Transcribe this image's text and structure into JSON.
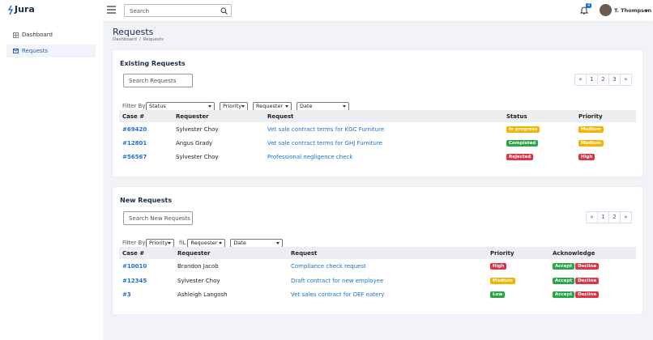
{
  "brand": "Jura",
  "header": {
    "search_placeholder": "Search",
    "notification_count": "4",
    "user": "T. Thompson"
  },
  "sidebar": [
    {
      "label": "Dashboard"
    },
    {
      "label": "Requests"
    }
  ],
  "page": {
    "title": "Requests",
    "breadcrumb": [
      "Dashboard",
      "/",
      "Requests"
    ]
  },
  "existing_requests": {
    "title": "Existing Requests",
    "search_placeholder": "Search Requests",
    "pagination": [
      "«",
      "1",
      "2",
      "3",
      "»"
    ],
    "filter_label": "Filter By:",
    "filters": [
      {
        "select": "Status"
      },
      {
        "select": "Priority"
      },
      {
        "select": "Requester"
      },
      {
        "select": "Date"
      }
    ],
    "columns": [
      "Case #",
      "Requester",
      "Request",
      "Status",
      "Priority"
    ],
    "rows": [
      {
        "case": "#69420",
        "requester": "Sylvester Choy",
        "request": "Vet sale contract terms for KGC Furniture",
        "badges": [
          {
            "text": "In progress",
            "color": "#f5b400"
          },
          {
            "text": "Medium",
            "color": "#f5b400"
          }
        ]
      },
      {
        "case": "#12801",
        "requester": "Angus Grady",
        "request": "Vet sale contract terms for GHJ Furniture",
        "badges": [
          {
            "text": "Completed",
            "color": "#28a745"
          },
          {
            "text": "Medium",
            "color": "#f5b400"
          }
        ]
      },
      {
        "case": "#56567",
        "requester": "Sylvester Choy",
        "request": "Professional negligence check",
        "badges": [
          {
            "text": "Rejected",
            "color": "#dc3545"
          },
          {
            "text": "High",
            "color": "#dc3545"
          }
        ]
      }
    ]
  },
  "new_requests": {
    "title": "New Requests",
    "search_placeholder": "Search New Requests",
    "pagination": [
      "«",
      "1",
      "2",
      "»"
    ],
    "filter_label": "Filter By:",
    "filters": [
      {
        "select": "Priority"
      },
      {
        "label": "fiL",
        "select": "Requester"
      },
      {
        "select": "Date"
      }
    ],
    "columns": [
      "Case #",
      "Requester",
      "Request",
      "Priority",
      "Acknowledge"
    ],
    "actions": [
      {
        "text": "Accept",
        "color": "#28a745"
      },
      {
        "text": "Decline",
        "color": "#dc3545"
      }
    ],
    "rows": [
      {
        "case": "#10010",
        "requester": "Brandon Jacob",
        "request": "Compliance check request",
        "badges": [
          {
            "text": "High",
            "color": "#dc3545"
          }
        ]
      },
      {
        "case": "#12345",
        "requester": "Sylvester Choy",
        "request": "Draft contract for new employee",
        "badges": [
          {
            "text": "Medium",
            "color": "#f5b400"
          }
        ]
      },
      {
        "case": "#3",
        "requester": "Ashleigh Langosh",
        "request": "Vet sales contract for DEF eatery",
        "badges": [
          {
            "text": "Low",
            "color": "#28a745"
          }
        ]
      }
    ]
  }
}
